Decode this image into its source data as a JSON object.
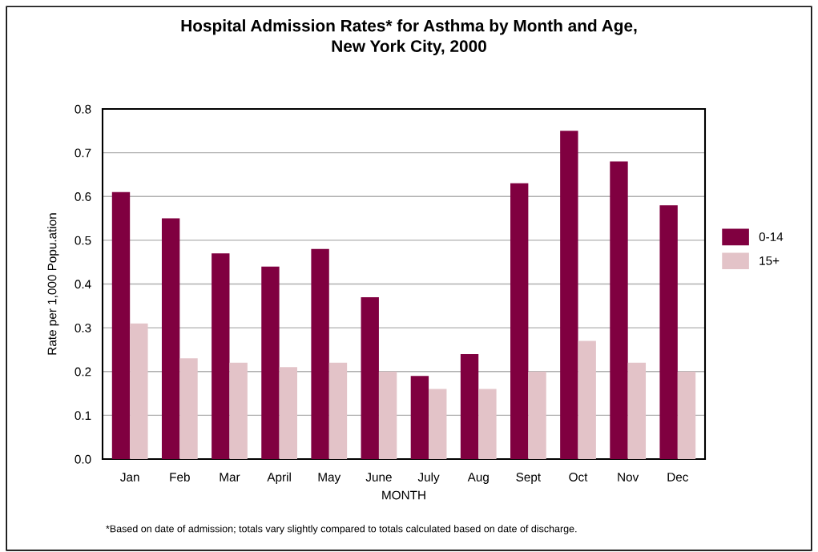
{
  "chart_data": {
    "type": "bar",
    "title": "Hospital Admission Rates* for Asthma by Month and Age,\nNew York City, 2000",
    "xlabel": "MONTH",
    "ylabel": "Rate per 1,000 Popu.ation",
    "categories": [
      "Jan",
      "Feb",
      "Mar",
      "April",
      "May",
      "June",
      "July",
      "Aug",
      "Sept",
      "Oct",
      "Nov",
      "Dec"
    ],
    "series": [
      {
        "name": "0-14",
        "color": "#800040",
        "values": [
          0.61,
          0.55,
          0.47,
          0.44,
          0.48,
          0.37,
          0.19,
          0.24,
          0.63,
          0.75,
          0.68,
          0.58
        ]
      },
      {
        "name": "15+",
        "color": "#e3c3c8",
        "values": [
          0.31,
          0.23,
          0.22,
          0.21,
          0.22,
          0.2,
          0.16,
          0.16,
          0.2,
          0.27,
          0.22,
          0.2
        ]
      }
    ],
    "ylim": [
      0,
      0.8
    ],
    "yticks": [
      {
        "value": 0,
        "label": "0.0"
      },
      {
        "value": 0.1,
        "label": "0.1"
      },
      {
        "value": 0.2,
        "label": "0.2"
      },
      {
        "value": 0.3,
        "label": "0.3"
      },
      {
        "value": 0.4,
        "label": "0.4"
      },
      {
        "value": 0.5,
        "label": "0.5"
      },
      {
        "value": 0.6,
        "label": "0.6"
      },
      {
        "value": 0.7,
        "label": "0.7"
      },
      {
        "value": 0.8,
        "label": "0.8"
      }
    ],
    "grid": "y",
    "legend": "right",
    "annotations": [
      "*Based on date of admission; totals vary slightly compared to totals calculated based on date of discharge."
    ]
  }
}
